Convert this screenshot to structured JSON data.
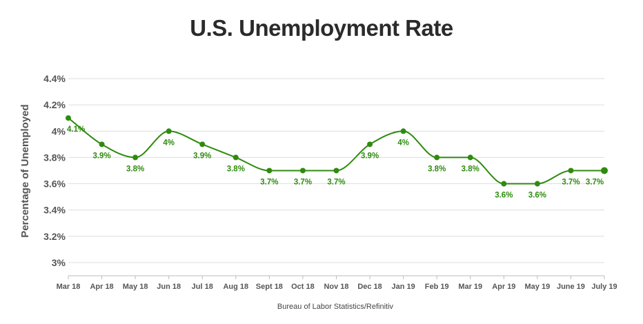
{
  "chart_data": {
    "type": "line",
    "title": "U.S. Unemployment Rate",
    "xlabel": "",
    "ylabel": "Percentage of Unemployed",
    "source": "Bureau of Labor Statistics/Refinitiv",
    "categories": [
      "Mar 18",
      "Apr 18",
      "May 18",
      "Jun 18",
      "Jul 18",
      "Aug 18",
      "Sept 18",
      "Oct 18",
      "Nov 18",
      "Dec 18",
      "Jan 19",
      "Feb 19",
      "Mar 19",
      "Apr 19",
      "May 19",
      "June 19",
      "July 19"
    ],
    "series": [
      {
        "values": [
          4.1,
          3.9,
          3.8,
          4.0,
          3.9,
          3.8,
          3.7,
          3.7,
          3.7,
          3.9,
          4.0,
          3.8,
          3.8,
          3.6,
          3.6,
          3.7,
          3.7
        ],
        "data_labels": [
          "4.1%",
          "3.9%",
          "3.8%",
          "4%",
          "3.9%",
          "3.8%",
          "3.7%",
          "3.7%",
          "3.7%",
          "3.9%",
          "4%",
          "3.8%",
          "3.8%",
          "3.6%",
          "3.6%",
          "3.7%",
          "3.7%"
        ],
        "color": "#2e8b0e"
      }
    ],
    "ylim": [
      2.9,
      4.4
    ],
    "y_ticks": [
      3.0,
      3.2,
      3.4,
      3.6,
      3.8,
      4.0,
      4.2,
      4.4
    ],
    "y_tick_labels": [
      "3%",
      "3.2%",
      "3.4%",
      "3.6%",
      "3.8%",
      "4%",
      "4.2%",
      "4.4%"
    ],
    "grid": "horizontal",
    "legend": "none",
    "line_style": "smooth",
    "colors": {
      "series": "#2e8b0e",
      "label": "#2e8b0e",
      "grid": "#dddddd",
      "axis": "#bbbbbb",
      "text": "#555555",
      "title": "#2b2b2b"
    }
  }
}
